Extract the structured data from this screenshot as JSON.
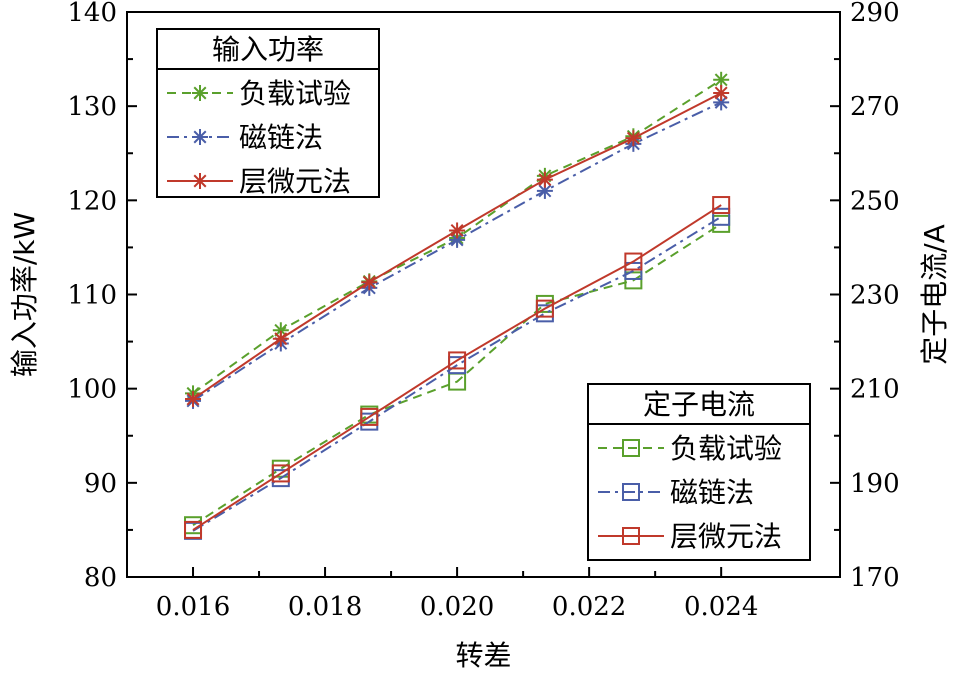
{
  "chart_data": {
    "type": "line",
    "title": "",
    "xlabel": "转差",
    "ylabel_left": "输入功率/kW",
    "ylabel_right": "定子电流/A",
    "x": [
      0.016,
      0.01733,
      0.01867,
      0.02,
      0.02133,
      0.02267,
      0.024
    ],
    "xlim": [
      0.015,
      0.0258
    ],
    "ylim_left": [
      80,
      140
    ],
    "ylim_right": [
      170,
      290
    ],
    "xticks": [
      0.016,
      0.018,
      0.02,
      0.022,
      0.024
    ],
    "xtick_labels": [
      "0.016",
      "0.018",
      "0.020",
      "0.022",
      "0.024"
    ],
    "yticks_left": [
      80,
      90,
      100,
      110,
      120,
      130,
      140
    ],
    "yticks_right": [
      170,
      190,
      210,
      230,
      250,
      270,
      290
    ],
    "grid": false,
    "legend_power": {
      "title": "输入功率",
      "placement": "top-left",
      "entries": [
        "负载试验",
        "磁链法",
        "层微元法"
      ]
    },
    "legend_current": {
      "title": "定子电流",
      "placement": "bottom-right",
      "entries": [
        "负载试验",
        "磁链法",
        "层微元法"
      ]
    },
    "series": [
      {
        "name": "负载试验",
        "group": "power",
        "axis": "left",
        "marker": "asterisk",
        "dash": "dashed",
        "color": "#5aa02c",
        "values": [
          99.5,
          106.2,
          111.4,
          116.0,
          122.6,
          126.8,
          132.8
        ]
      },
      {
        "name": "磁链法",
        "group": "power",
        "axis": "left",
        "marker": "asterisk",
        "dash": "dashdot",
        "color": "#4a5ea8",
        "values": [
          98.7,
          104.8,
          110.7,
          115.8,
          121.0,
          126.0,
          130.4
        ]
      },
      {
        "name": "层微元法",
        "group": "power",
        "axis": "left",
        "marker": "asterisk",
        "dash": "solid",
        "color": "#c0392b",
        "values": [
          98.9,
          105.3,
          111.3,
          116.8,
          122.2,
          126.6,
          131.4
        ]
      },
      {
        "name": "负载试验",
        "group": "current",
        "axis": "right",
        "marker": "square",
        "dash": "dashed",
        "color": "#5aa02c",
        "values": [
          181.0,
          193.0,
          204.5,
          211.5,
          228.0,
          233.0,
          245.0
        ]
      },
      {
        "name": "磁链法",
        "group": "current",
        "axis": "right",
        "marker": "square",
        "dash": "dashdot",
        "color": "#4a5ea8",
        "values": [
          179.8,
          191.0,
          203.0,
          215.0,
          226.0,
          235.0,
          246.5
        ]
      },
      {
        "name": "层微元法",
        "group": "current",
        "axis": "right",
        "marker": "square",
        "dash": "solid",
        "color": "#c0392b",
        "values": [
          180.0,
          192.0,
          204.0,
          216.0,
          227.0,
          237.0,
          249.0
        ]
      }
    ]
  }
}
